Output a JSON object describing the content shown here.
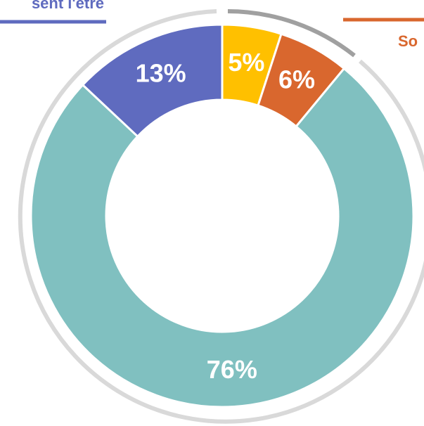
{
  "chart_data": {
    "type": "donut",
    "categories": [
      null,
      "So",
      null,
      "sent l'être"
    ],
    "values": [
      5,
      6,
      76,
      13
    ],
    "value_labels": [
      "5%",
      "6%",
      "76%",
      "13%"
    ],
    "colors": [
      "#ffc000",
      "#d9672e",
      "#80c0c0",
      "#5f6bbf"
    ]
  }
}
